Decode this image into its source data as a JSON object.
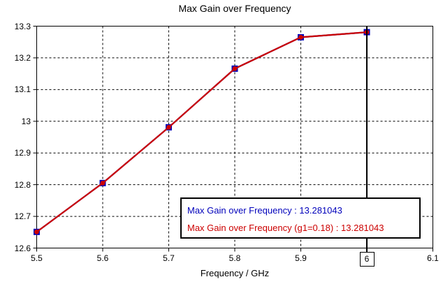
{
  "chart_data": {
    "type": "line",
    "title": "Max Gain over Frequency",
    "xlabel": "Frequency / GHz",
    "ylabel": "",
    "xlim": [
      5.5,
      6.1
    ],
    "ylim": [
      12.6,
      13.3
    ],
    "xticks": {
      "values": [
        5.5,
        5.6,
        5.7,
        5.8,
        5.9,
        6,
        6.1
      ],
      "labels": [
        "5.5",
        "5.6",
        "5.7",
        "5.8",
        "5.9",
        "6",
        "6.1"
      ]
    },
    "yticks": {
      "values": [
        12.6,
        12.7,
        12.8,
        12.9,
        13,
        13.1,
        13.2,
        13.3
      ],
      "labels": [
        "12.6",
        "12.7",
        "12.8",
        "12.9",
        "13",
        "13.1",
        "13.2",
        "13.3"
      ]
    },
    "grid": true,
    "grid_style": "dashed",
    "x": [
      5.5,
      5.6,
      5.7,
      5.8,
      5.9,
      6
    ],
    "series": [
      {
        "name": "Max Gain over Frequency",
        "color": "#0000bb",
        "marker": "square",
        "values": [
          12.651,
          12.805,
          12.981,
          13.166,
          13.265,
          13.281043
        ]
      },
      {
        "name": "Max Gain over Frequency (g1=0.18)",
        "color": "#cc0000",
        "marker": "circle",
        "values": [
          12.651,
          12.805,
          12.981,
          13.166,
          13.265,
          13.281043
        ]
      }
    ],
    "axis_marker": {
      "x": 6,
      "label": "6",
      "readout": 13.281043
    },
    "legend_position": "bottom-right-inside"
  },
  "legend": {
    "line1": "Max Gain over Frequency : 13.281043",
    "line1_color": "#0000bb",
    "line2": "Max Gain over Frequency (g1=0.18) : 13.281043",
    "line2_color": "#cc0000"
  },
  "colors": {
    "background": "#ffffff",
    "grid": "#000000",
    "axis": "#000000",
    "marker_line": "#000000"
  }
}
